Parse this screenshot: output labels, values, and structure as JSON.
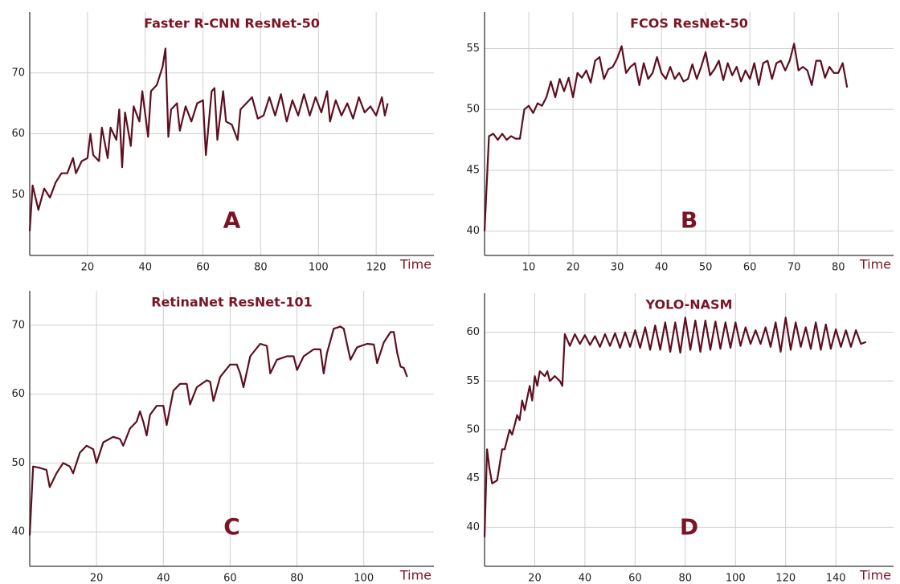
{
  "chart_data": [
    {
      "type": "line",
      "title": "Faster R-CNN ResNet-50",
      "xlabel": "Time",
      "annotation": "A",
      "color": "#5c0f1f",
      "grid": true,
      "xlim": [
        0,
        140
      ],
      "ylim": [
        40,
        80
      ],
      "xticks": [
        20,
        40,
        60,
        80,
        100,
        120
      ],
      "yticks": [
        50,
        60,
        70
      ],
      "x": [
        0,
        1,
        3,
        5,
        7,
        9,
        11,
        13,
        15,
        16,
        18,
        20,
        21,
        22,
        24,
        25,
        27,
        28,
        30,
        31,
        32,
        33,
        35,
        36,
        38,
        39,
        41,
        42,
        44,
        46,
        47,
        48,
        49,
        51,
        52,
        54,
        56,
        58,
        60,
        61,
        63,
        64,
        65,
        67,
        68,
        70,
        72,
        73,
        75,
        77,
        79,
        81,
        83,
        85,
        87,
        89,
        91,
        93,
        95,
        97,
        99,
        101,
        103,
        104,
        106,
        108,
        110,
        112,
        114,
        116,
        118,
        120,
        122,
        123,
        124
      ],
      "values": [
        44,
        51.5,
        47.5,
        51,
        49.5,
        52,
        53.5,
        53.5,
        56,
        53.5,
        55.5,
        56,
        60,
        56.5,
        55.5,
        61,
        56,
        61,
        59,
        64,
        54.5,
        63.5,
        58,
        64.5,
        62,
        67,
        59.5,
        67,
        68,
        71,
        74,
        59.5,
        64,
        65,
        60.5,
        64.5,
        62,
        65,
        65.5,
        56.5,
        67,
        67.5,
        59,
        67,
        62,
        61.5,
        59,
        64,
        65,
        66,
        62.5,
        63,
        66,
        63,
        66.5,
        62,
        65.5,
        63,
        66.5,
        63,
        66,
        63.5,
        67,
        62,
        65.5,
        63,
        65,
        62.5,
        66,
        63.5,
        64.5,
        63,
        66,
        63,
        65
      ]
    },
    {
      "type": "line",
      "title": "FCOS ResNet-50",
      "xlabel": "Time",
      "annotation": "B",
      "color": "#5c0f1f",
      "grid": true,
      "xlim": [
        0,
        92.5
      ],
      "ylim": [
        38,
        58
      ],
      "xticks": [
        10,
        20,
        30,
        40,
        50,
        60,
        70,
        80
      ],
      "yticks": [
        40,
        45,
        50,
        55
      ],
      "x": [
        0,
        1,
        2,
        3,
        4,
        5,
        6,
        7,
        8,
        9,
        10,
        11,
        12,
        13,
        14,
        15,
        16,
        17,
        18,
        19,
        20,
        21,
        22,
        23,
        24,
        25,
        26,
        27,
        28,
        29,
        30,
        31,
        32,
        33,
        34,
        35,
        36,
        37,
        38,
        39,
        40,
        41,
        42,
        43,
        44,
        45,
        46,
        47,
        48,
        49,
        50,
        51,
        52,
        53,
        54,
        55,
        56,
        57,
        58,
        59,
        60,
        61,
        62,
        63,
        64,
        65,
        66,
        67,
        68,
        69,
        70,
        71,
        72,
        73,
        74,
        75,
        76,
        77,
        78,
        79,
        80,
        81,
        82
      ],
      "values": [
        40,
        47.8,
        48,
        47.5,
        48,
        47.5,
        47.8,
        47.6,
        47.6,
        50,
        50.3,
        49.7,
        50.5,
        50.3,
        51,
        52.3,
        51,
        52.5,
        51.5,
        52.6,
        51,
        53,
        52.6,
        53.2,
        52.2,
        54,
        54.3,
        52.5,
        53.3,
        53.5,
        54.2,
        55.2,
        53,
        53.5,
        53.8,
        52,
        53.8,
        52.5,
        53,
        54.3,
        53,
        52.5,
        53.5,
        52.5,
        53,
        52.3,
        52.5,
        53.7,
        52.5,
        53.5,
        54.7,
        52.8,
        53.3,
        54,
        52.4,
        53.8,
        52.8,
        53.5,
        52.3,
        53.2,
        52.5,
        53.8,
        52,
        53.8,
        54,
        52.5,
        53.8,
        54,
        53.2,
        54,
        55.4,
        53.2,
        53.5,
        53.2,
        52,
        54,
        54,
        52.6,
        53.5,
        53,
        53,
        53.8,
        51.8
      ]
    },
    {
      "type": "line",
      "title": "RetinaNet ResNet-101",
      "xlabel": "Time",
      "annotation": "C",
      "color": "#5c0f1f",
      "grid": true,
      "xlim": [
        0,
        121
      ],
      "ylim": [
        35,
        75
      ],
      "xticks": [
        20,
        40,
        60,
        80,
        100
      ],
      "yticks": [
        40,
        50,
        60,
        70
      ],
      "x": [
        0,
        1,
        3,
        5,
        6,
        8,
        10,
        12,
        13,
        15,
        17,
        19,
        20,
        22,
        25,
        27,
        28,
        30,
        32,
        33,
        34,
        35,
        36,
        38,
        40,
        41,
        43,
        45,
        47,
        48,
        50,
        53,
        54,
        55,
        57,
        60,
        62,
        63,
        64,
        66,
        69,
        71,
        72,
        74,
        77,
        79,
        80,
        82,
        85,
        87,
        88,
        89,
        91,
        93,
        94,
        96,
        98,
        101,
        103,
        104,
        106,
        108,
        109,
        110,
        111,
        112,
        113
      ],
      "values": [
        39.5,
        49.5,
        49.3,
        49,
        46.5,
        48.5,
        50,
        49.5,
        48.5,
        51.5,
        52.5,
        52,
        50,
        53,
        53.8,
        53.5,
        52.5,
        55,
        56,
        57.5,
        56,
        54,
        57,
        58.3,
        58.3,
        55.5,
        60.5,
        61.5,
        61.5,
        58.5,
        61,
        62,
        61.8,
        59,
        62.5,
        64.3,
        64.3,
        63,
        61,
        65.5,
        67.3,
        67,
        63,
        65,
        65.5,
        65.5,
        63.5,
        65.5,
        66.5,
        66.5,
        63,
        66,
        69.5,
        69.8,
        69.5,
        65,
        66.8,
        67.3,
        67.2,
        64.5,
        67.5,
        69,
        69,
        66,
        64,
        63.8,
        62.5
      ]
    },
    {
      "type": "line",
      "title": "YOLO-NASM",
      "xlabel": "Time",
      "annotation": "D",
      "color": "#5c0f1f",
      "grid": true,
      "xlim": [
        0,
        163
      ],
      "ylim": [
        36,
        64
      ],
      "xticks": [
        20,
        40,
        60,
        80,
        100,
        120,
        140
      ],
      "yticks": [
        40,
        45,
        50,
        55,
        60
      ],
      "x": [
        0,
        1,
        2,
        3,
        5,
        7,
        8,
        10,
        11,
        13,
        14,
        15,
        16,
        18,
        19,
        20,
        21,
        22,
        24,
        25,
        26,
        28,
        30,
        31,
        32,
        34,
        36,
        38,
        40,
        42,
        44,
        46,
        48,
        50,
        52,
        54,
        56,
        58,
        60,
        62,
        64,
        66,
        68,
        70,
        72,
        74,
        76,
        78,
        80,
        82,
        84,
        86,
        88,
        90,
        92,
        94,
        96,
        98,
        100,
        102,
        104,
        106,
        108,
        110,
        112,
        114,
        116,
        118,
        120,
        122,
        124,
        126,
        128,
        130,
        132,
        134,
        136,
        138,
        140,
        142,
        144,
        146,
        148,
        150,
        152
      ],
      "values": [
        39,
        48,
        46,
        44.5,
        44.8,
        48,
        48,
        50,
        49.5,
        51.5,
        51,
        53,
        52,
        54.5,
        53,
        55.5,
        54.5,
        56,
        55.5,
        56,
        55,
        55.5,
        55,
        54.5,
        59.8,
        58.6,
        59.8,
        58.8,
        59.7,
        58.7,
        59.6,
        58.5,
        59.8,
        58.6,
        59.9,
        58.4,
        60,
        58.5,
        60.2,
        58.4,
        60.5,
        58.2,
        60.7,
        58.2,
        61,
        58,
        61,
        57.9,
        61.5,
        58.2,
        61.2,
        58,
        61.2,
        58.2,
        61.1,
        58.3,
        61,
        58.4,
        61,
        58.6,
        60.5,
        58.8,
        60.2,
        58.8,
        60.5,
        58.5,
        61,
        58,
        61.5,
        58.2,
        61,
        58.5,
        60.5,
        58.3,
        61,
        58.2,
        60.8,
        58.3,
        60.3,
        58.5,
        60.2,
        58.5,
        60.2,
        58.8,
        59
      ]
    }
  ]
}
